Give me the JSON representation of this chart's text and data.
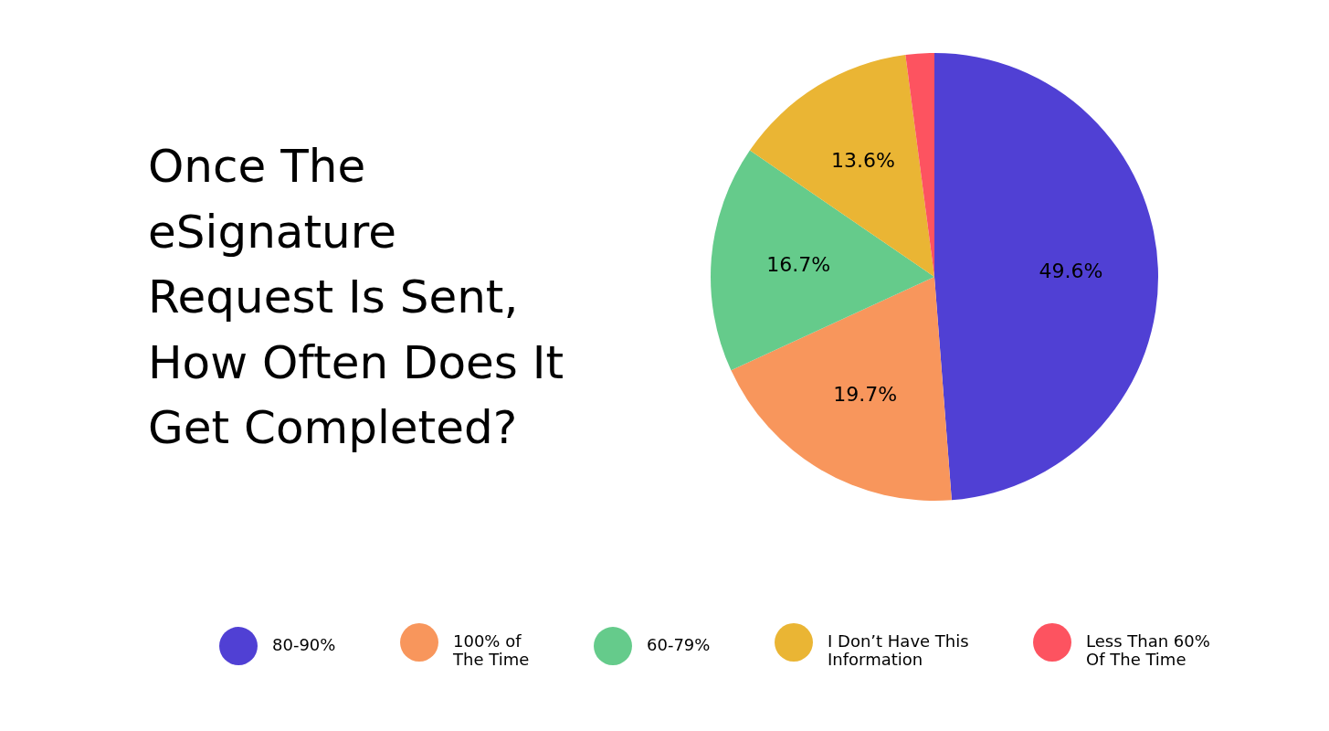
{
  "chart_data": {
    "type": "pie",
    "title": "Once The eSignature Request Is Sent, How Often Does It Get Completed?",
    "categories": [
      "80-90%",
      "100% of The Time",
      "60-79%",
      "I Don’t Have This Information",
      "Less Than 60% Of The Time"
    ],
    "values": [
      49.6,
      19.7,
      16.7,
      13.6,
      2.1
    ],
    "colors": [
      "#5040d4",
      "#f8965c",
      "#65cb8b",
      "#eab534",
      "#fd5360"
    ],
    "value_labels": [
      "49.6%",
      "19.7%",
      "16.7%",
      "13.6%",
      null
    ],
    "legend": "bottom"
  }
}
